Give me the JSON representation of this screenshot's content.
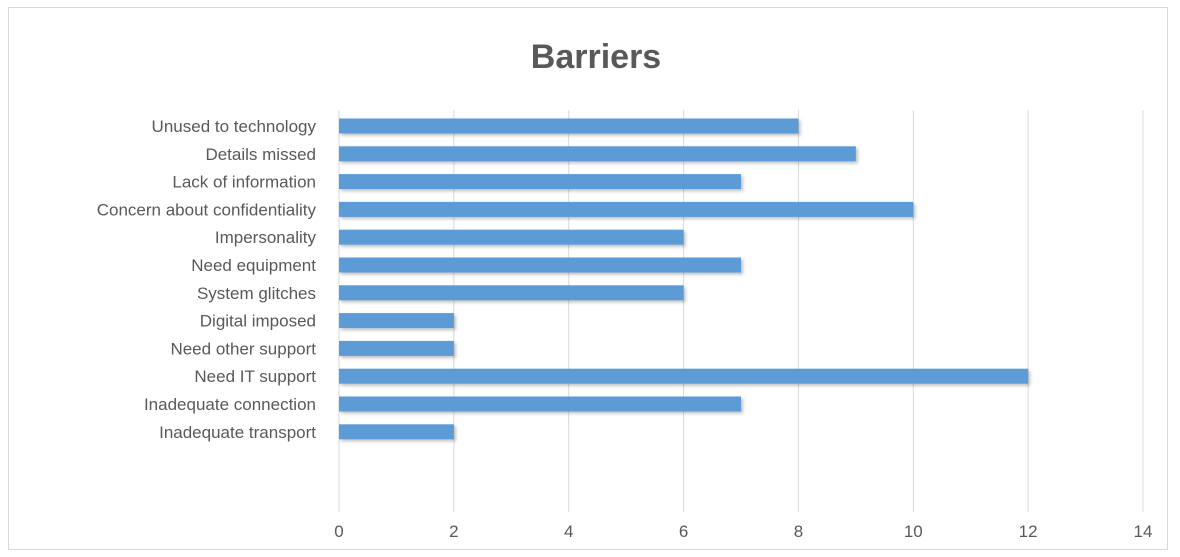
{
  "chart_data": {
    "type": "bar",
    "orientation": "horizontal",
    "title": "Barriers",
    "categories": [
      "Unused to technology",
      "Details missed",
      "Lack of information",
      "Concern about confidentiality",
      "Impersonality",
      "Need equipment",
      "System glitches",
      "Digital imposed",
      "Need other support",
      "Need IT support",
      "Inadequate connection",
      "Inadequate transport"
    ],
    "values": [
      8,
      9,
      7,
      10,
      6,
      7,
      6,
      2,
      2,
      12,
      7,
      2
    ],
    "xlim": [
      0,
      14
    ],
    "xticks": [
      "0",
      "2",
      "4",
      "6",
      "8",
      "10",
      "12",
      "14"
    ],
    "grid": true,
    "legend": false,
    "bar_color": "#5B9BD5",
    "grid_color": "#d9d9d9",
    "text_color": "#595959"
  }
}
